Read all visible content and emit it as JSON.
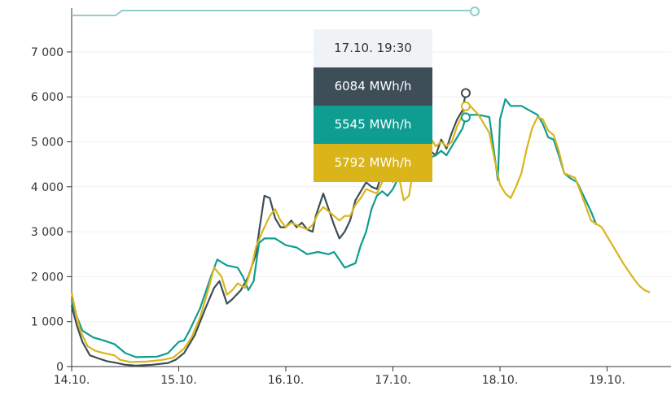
{
  "chart_data": {
    "type": "line",
    "title": "",
    "xlabel": "",
    "ylabel": "",
    "x_ticks": [
      "14.10.",
      "15.10.",
      "16.10.",
      "17.10.",
      "18.10.",
      "19.10."
    ],
    "y_ticks": [
      {
        "value": 0,
        "label": "0"
      },
      {
        "value": 1000,
        "label": "1 000"
      },
      {
        "value": 2000,
        "label": "2 000"
      },
      {
        "value": 3000,
        "label": "3 000"
      },
      {
        "value": 4000,
        "label": "4 000"
      },
      {
        "value": 5000,
        "label": "5 000"
      },
      {
        "value": 6000,
        "label": "6 000"
      },
      {
        "value": 7000,
        "label": "7 000"
      }
    ],
    "xlim_days": [
      0,
      5.75
    ],
    "ylim": [
      0,
      7900
    ],
    "grid": "horizontal",
    "series": [
      {
        "color": "#3d4e58",
        "points": [
          [
            0,
            1350
          ],
          [
            0.05,
            900
          ],
          [
            0.1,
            550
          ],
          [
            0.17,
            250
          ],
          [
            0.25,
            180
          ],
          [
            0.33,
            120
          ],
          [
            0.42,
            80
          ],
          [
            0.5,
            40
          ],
          [
            0.6,
            20
          ],
          [
            0.75,
            40
          ],
          [
            0.9,
            80
          ],
          [
            0.97,
            150
          ],
          [
            1.05,
            300
          ],
          [
            1.15,
            700
          ],
          [
            1.25,
            1300
          ],
          [
            1.33,
            1750
          ],
          [
            1.38,
            1900
          ],
          [
            1.45,
            1400
          ],
          [
            1.5,
            1500
          ],
          [
            1.58,
            1700
          ],
          [
            1.65,
            2000
          ],
          [
            1.72,
            2500
          ],
          [
            1.75,
            3000
          ],
          [
            1.8,
            3800
          ],
          [
            1.85,
            3750
          ],
          [
            1.9,
            3300
          ],
          [
            1.95,
            3100
          ],
          [
            2.0,
            3100
          ],
          [
            2.05,
            3250
          ],
          [
            2.1,
            3100
          ],
          [
            2.15,
            3200
          ],
          [
            2.2,
            3050
          ],
          [
            2.25,
            3000
          ],
          [
            2.28,
            3350
          ],
          [
            2.35,
            3850
          ],
          [
            2.4,
            3500
          ],
          [
            2.45,
            3150
          ],
          [
            2.5,
            2850
          ],
          [
            2.55,
            3000
          ],
          [
            2.6,
            3250
          ],
          [
            2.65,
            3700
          ],
          [
            2.7,
            3900
          ],
          [
            2.75,
            4100
          ],
          [
            2.8,
            4000
          ],
          [
            2.85,
            3950
          ],
          [
            2.9,
            4300
          ],
          [
            2.95,
            4800
          ],
          [
            3.0,
            4150
          ],
          [
            3.05,
            4250
          ],
          [
            3.1,
            4750
          ],
          [
            3.15,
            4500
          ],
          [
            3.2,
            4700
          ],
          [
            3.25,
            4950
          ],
          [
            3.3,
            5000
          ],
          [
            3.35,
            4800
          ],
          [
            3.4,
            4700
          ],
          [
            3.45,
            5050
          ],
          [
            3.5,
            4850
          ],
          [
            3.55,
            5200
          ],
          [
            3.6,
            5500
          ],
          [
            3.65,
            5700
          ],
          [
            3.68,
            6084
          ]
        ]
      },
      {
        "color": "#0f9c91",
        "points": [
          [
            0,
            1450
          ],
          [
            0.05,
            1100
          ],
          [
            0.1,
            800
          ],
          [
            0.2,
            650
          ],
          [
            0.3,
            580
          ],
          [
            0.4,
            500
          ],
          [
            0.5,
            300
          ],
          [
            0.6,
            210
          ],
          [
            0.8,
            220
          ],
          [
            0.9,
            300
          ],
          [
            1.0,
            550
          ],
          [
            1.05,
            580
          ],
          [
            1.1,
            800
          ],
          [
            1.2,
            1300
          ],
          [
            1.3,
            2000
          ],
          [
            1.36,
            2380
          ],
          [
            1.45,
            2250
          ],
          [
            1.55,
            2200
          ],
          [
            1.6,
            2000
          ],
          [
            1.65,
            1700
          ],
          [
            1.7,
            1900
          ],
          [
            1.75,
            2750
          ],
          [
            1.8,
            2850
          ],
          [
            1.9,
            2850
          ],
          [
            2.0,
            2700
          ],
          [
            2.1,
            2650
          ],
          [
            2.2,
            2500
          ],
          [
            2.3,
            2550
          ],
          [
            2.4,
            2500
          ],
          [
            2.45,
            2550
          ],
          [
            2.55,
            2200
          ],
          [
            2.65,
            2300
          ],
          [
            2.7,
            2700
          ],
          [
            2.75,
            3000
          ],
          [
            2.8,
            3500
          ],
          [
            2.85,
            3800
          ],
          [
            2.9,
            3900
          ],
          [
            2.95,
            3800
          ],
          [
            3.0,
            3950
          ],
          [
            3.05,
            4200
          ],
          [
            3.1,
            4350
          ],
          [
            3.15,
            4500
          ],
          [
            3.2,
            4650
          ],
          [
            3.25,
            4800
          ],
          [
            3.3,
            4600
          ],
          [
            3.4,
            4700
          ],
          [
            3.45,
            4800
          ],
          [
            3.5,
            4700
          ],
          [
            3.55,
            4900
          ],
          [
            3.6,
            5100
          ],
          [
            3.65,
            5300
          ],
          [
            3.68,
            5545
          ],
          [
            3.72,
            5600
          ],
          [
            3.8,
            5600
          ],
          [
            3.9,
            5550
          ],
          [
            3.98,
            4150
          ],
          [
            4.0,
            5500
          ],
          [
            4.05,
            5950
          ],
          [
            4.1,
            5800
          ],
          [
            4.2,
            5800
          ],
          [
            4.35,
            5600
          ],
          [
            4.4,
            5400
          ],
          [
            4.45,
            5100
          ],
          [
            4.5,
            5050
          ],
          [
            4.55,
            4700
          ],
          [
            4.6,
            4300
          ],
          [
            4.65,
            4200
          ],
          [
            4.72,
            4100
          ],
          [
            4.8,
            3700
          ],
          [
            4.85,
            3450
          ],
          [
            4.9,
            3150
          ]
        ]
      },
      {
        "color": "#d9b51a",
        "points": [
          [
            0,
            1650
          ],
          [
            0.03,
            1300
          ],
          [
            0.08,
            800
          ],
          [
            0.15,
            450
          ],
          [
            0.22,
            350
          ],
          [
            0.3,
            300
          ],
          [
            0.4,
            250
          ],
          [
            0.45,
            150
          ],
          [
            0.55,
            100
          ],
          [
            0.7,
            110
          ],
          [
            0.85,
            150
          ],
          [
            0.95,
            200
          ],
          [
            1.05,
            400
          ],
          [
            1.12,
            650
          ],
          [
            1.2,
            1100
          ],
          [
            1.28,
            1750
          ],
          [
            1.33,
            2200
          ],
          [
            1.4,
            2000
          ],
          [
            1.45,
            1600
          ],
          [
            1.5,
            1700
          ],
          [
            1.55,
            1850
          ],
          [
            1.62,
            1750
          ],
          [
            1.68,
            2200
          ],
          [
            1.72,
            2650
          ],
          [
            1.78,
            3000
          ],
          [
            1.85,
            3350
          ],
          [
            1.9,
            3500
          ],
          [
            1.95,
            3250
          ],
          [
            2.0,
            3100
          ],
          [
            2.05,
            3200
          ],
          [
            2.15,
            3100
          ],
          [
            2.2,
            3050
          ],
          [
            2.25,
            3150
          ],
          [
            2.3,
            3400
          ],
          [
            2.35,
            3550
          ],
          [
            2.4,
            3450
          ],
          [
            2.45,
            3350
          ],
          [
            2.5,
            3250
          ],
          [
            2.55,
            3350
          ],
          [
            2.6,
            3350
          ],
          [
            2.65,
            3600
          ],
          [
            2.7,
            3750
          ],
          [
            2.75,
            3950
          ],
          [
            2.85,
            3850
          ],
          [
            2.9,
            4100
          ],
          [
            2.95,
            4650
          ],
          [
            3.0,
            4100
          ],
          [
            3.05,
            4300
          ],
          [
            3.1,
            3700
          ],
          [
            3.15,
            3800
          ],
          [
            3.2,
            4500
          ],
          [
            3.25,
            4850
          ],
          [
            3.3,
            4950
          ],
          [
            3.35,
            5100
          ],
          [
            3.4,
            4900
          ],
          [
            3.45,
            5000
          ],
          [
            3.5,
            4900
          ],
          [
            3.55,
            5000
          ],
          [
            3.6,
            5350
          ],
          [
            3.65,
            5600
          ],
          [
            3.68,
            5792
          ],
          [
            3.72,
            5800
          ],
          [
            3.8,
            5600
          ],
          [
            3.9,
            5200
          ],
          [
            3.95,
            4600
          ],
          [
            4.0,
            4050
          ],
          [
            4.05,
            3850
          ],
          [
            4.1,
            3750
          ],
          [
            4.15,
            4000
          ],
          [
            4.2,
            4300
          ],
          [
            4.25,
            4850
          ],
          [
            4.3,
            5300
          ],
          [
            4.35,
            5550
          ],
          [
            4.4,
            5500
          ],
          [
            4.45,
            5250
          ],
          [
            4.5,
            5150
          ],
          [
            4.55,
            4800
          ],
          [
            4.6,
            4300
          ],
          [
            4.7,
            4200
          ],
          [
            4.75,
            3900
          ],
          [
            4.85,
            3250
          ],
          [
            4.95,
            3100
          ],
          [
            5.05,
            2700
          ],
          [
            5.15,
            2300
          ],
          [
            5.25,
            1950
          ],
          [
            5.3,
            1800
          ],
          [
            5.35,
            1700
          ],
          [
            5.4,
            1650
          ]
        ]
      }
    ],
    "navigator": {
      "color": "#8ecfcc"
    },
    "tooltip": {
      "time": "17.10. 19:30",
      "rows": [
        {
          "value": "6084 MWh/h",
          "color": "#3d4e58"
        },
        {
          "value": "5545 MWh/h",
          "color": "#0f9c91"
        },
        {
          "value": "5792 MWh/h",
          "color": "#d9b51a"
        }
      ],
      "hover_x_day": 3.68
    }
  }
}
